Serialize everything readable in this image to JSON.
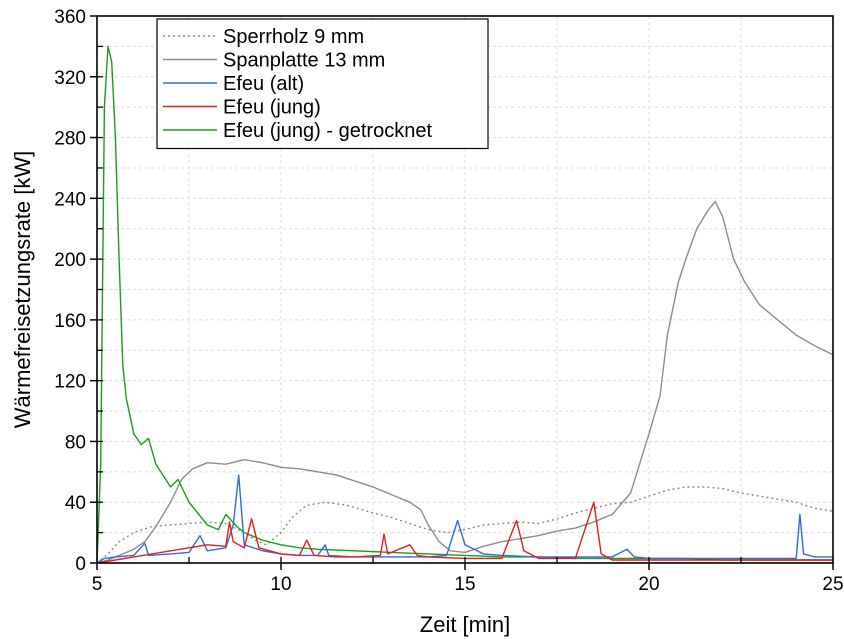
{
  "chart_data": {
    "type": "line",
    "title": "",
    "xlabel": "Zeit [min]",
    "ylabel": "Wärmefreisetzungsrate [kW]",
    "xlim": [
      5,
      25
    ],
    "ylim": [
      0,
      360
    ],
    "xticks": [
      5,
      10,
      15,
      20,
      25
    ],
    "yticks": [
      0,
      40,
      80,
      120,
      160,
      200,
      240,
      280,
      320,
      360
    ],
    "grid": true,
    "legend_position": "top-left",
    "series": [
      {
        "name": "Sperrholz 9 mm",
        "color": "#888888",
        "style": "dotted",
        "points": [
          [
            5,
            0
          ],
          [
            5.3,
            6
          ],
          [
            5.6,
            14
          ],
          [
            6,
            20
          ],
          [
            6.5,
            24
          ],
          [
            7,
            25
          ],
          [
            7.5,
            26
          ],
          [
            8,
            27
          ],
          [
            8.5,
            26
          ],
          [
            9,
            20
          ],
          [
            9.3,
            15
          ],
          [
            9.6,
            12
          ],
          [
            10,
            20
          ],
          [
            10.3,
            30
          ],
          [
            10.7,
            38
          ],
          [
            11.2,
            40
          ],
          [
            11.8,
            38
          ],
          [
            12.5,
            33
          ],
          [
            13,
            30
          ],
          [
            13.5,
            26
          ],
          [
            14,
            22
          ],
          [
            14.5,
            20
          ],
          [
            15,
            22
          ],
          [
            15.5,
            25
          ],
          [
            16,
            26
          ],
          [
            16.5,
            27
          ],
          [
            17,
            26
          ],
          [
            17.5,
            29
          ],
          [
            18,
            33
          ],
          [
            18.5,
            36
          ],
          [
            19,
            39
          ],
          [
            19.5,
            40
          ],
          [
            20,
            44
          ],
          [
            20.5,
            48
          ],
          [
            21,
            50
          ],
          [
            21.5,
            50
          ],
          [
            22,
            49
          ],
          [
            22.5,
            46
          ],
          [
            23,
            44
          ],
          [
            23.5,
            42
          ],
          [
            24,
            40
          ],
          [
            24.5,
            36
          ],
          [
            25,
            34
          ]
        ]
      },
      {
        "name": "Spanplatte 13 mm",
        "color": "#8c8c8c",
        "style": "solid",
        "points": [
          [
            5,
            0
          ],
          [
            5.3,
            2
          ],
          [
            5.6,
            5
          ],
          [
            6,
            9
          ],
          [
            6.3,
            14
          ],
          [
            6.6,
            24
          ],
          [
            7,
            40
          ],
          [
            7.3,
            55
          ],
          [
            7.6,
            62
          ],
          [
            8,
            66
          ],
          [
            8.5,
            65
          ],
          [
            9,
            68
          ],
          [
            9.5,
            66
          ],
          [
            10,
            63
          ],
          [
            10.5,
            62
          ],
          [
            11,
            60
          ],
          [
            11.5,
            58
          ],
          [
            12,
            54
          ],
          [
            12.5,
            50
          ],
          [
            13,
            45
          ],
          [
            13.5,
            40
          ],
          [
            13.8,
            35
          ],
          [
            14,
            25
          ],
          [
            14.3,
            14
          ],
          [
            14.6,
            8
          ],
          [
            15,
            7
          ],
          [
            15.5,
            11
          ],
          [
            16,
            14
          ],
          [
            16.5,
            16
          ],
          [
            17,
            18
          ],
          [
            17.5,
            21
          ],
          [
            18,
            23
          ],
          [
            18.5,
            27
          ],
          [
            19,
            32
          ],
          [
            19.5,
            46
          ],
          [
            20,
            85
          ],
          [
            20.3,
            110
          ],
          [
            20.5,
            150
          ],
          [
            20.8,
            185
          ],
          [
            21,
            200
          ],
          [
            21.3,
            220
          ],
          [
            21.6,
            232
          ],
          [
            21.8,
            238
          ],
          [
            22,
            228
          ],
          [
            22.3,
            200
          ],
          [
            22.6,
            185
          ],
          [
            23,
            170
          ],
          [
            23.5,
            160
          ],
          [
            24,
            150
          ],
          [
            24.5,
            143
          ],
          [
            25,
            137
          ]
        ]
      },
      {
        "name": "Efeu (alt)",
        "color": "#2f6fd0",
        "style": "solid",
        "points": [
          [
            5,
            0
          ],
          [
            5.2,
            3
          ],
          [
            5.5,
            4
          ],
          [
            6,
            5
          ],
          [
            6.3,
            13
          ],
          [
            6.4,
            5
          ],
          [
            7,
            6
          ],
          [
            7.5,
            7
          ],
          [
            7.8,
            18
          ],
          [
            8,
            8
          ],
          [
            8.5,
            10
          ],
          [
            8.7,
            25
          ],
          [
            8.85,
            58
          ],
          [
            9,
            12
          ],
          [
            9.5,
            8
          ],
          [
            10,
            6
          ],
          [
            10.5,
            5
          ],
          [
            11,
            5
          ],
          [
            11.2,
            12
          ],
          [
            11.3,
            5
          ],
          [
            12,
            4
          ],
          [
            13,
            4
          ],
          [
            14,
            4
          ],
          [
            14.5,
            5
          ],
          [
            14.8,
            28
          ],
          [
            15,
            12
          ],
          [
            15.5,
            6
          ],
          [
            16,
            5
          ],
          [
            17,
            4
          ],
          [
            18,
            4
          ],
          [
            19,
            4
          ],
          [
            19.4,
            9
          ],
          [
            19.6,
            4
          ],
          [
            20,
            3
          ],
          [
            21,
            3
          ],
          [
            22,
            3
          ],
          [
            23,
            3
          ],
          [
            24,
            3
          ],
          [
            24.1,
            32
          ],
          [
            24.2,
            6
          ],
          [
            24.5,
            4
          ],
          [
            25,
            4
          ]
        ]
      },
      {
        "name": "Efeu (jung)",
        "color": "#e02020",
        "style": "solid",
        "points": [
          [
            5,
            0
          ],
          [
            5.5,
            2
          ],
          [
            6,
            4
          ],
          [
            6.5,
            6
          ],
          [
            7,
            8
          ],
          [
            7.5,
            10
          ],
          [
            8,
            12
          ],
          [
            8.5,
            11
          ],
          [
            8.6,
            27
          ],
          [
            8.7,
            14
          ],
          [
            9,
            10
          ],
          [
            9.2,
            29
          ],
          [
            9.4,
            10
          ],
          [
            10,
            6
          ],
          [
            10.5,
            5
          ],
          [
            10.7,
            15
          ],
          [
            10.9,
            5
          ],
          [
            11.5,
            4
          ],
          [
            12,
            4
          ],
          [
            12.7,
            5
          ],
          [
            12.8,
            19
          ],
          [
            12.9,
            6
          ],
          [
            13.5,
            12
          ],
          [
            13.7,
            5
          ],
          [
            14,
            4
          ],
          [
            15,
            3
          ],
          [
            16,
            3
          ],
          [
            16.4,
            28
          ],
          [
            16.6,
            8
          ],
          [
            17,
            3
          ],
          [
            18,
            3
          ],
          [
            18.5,
            40
          ],
          [
            18.7,
            6
          ],
          [
            19,
            2
          ],
          [
            20,
            2
          ],
          [
            21,
            2
          ],
          [
            22,
            2
          ],
          [
            23,
            2
          ],
          [
            24,
            2
          ],
          [
            25,
            2
          ]
        ]
      },
      {
        "name": "Efeu (jung) - getrocknet",
        "color": "#1f9a1f",
        "style": "solid",
        "points": [
          [
            5,
            0
          ],
          [
            5.1,
            65
          ],
          [
            5.2,
            300
          ],
          [
            5.3,
            340
          ],
          [
            5.4,
            330
          ],
          [
            5.5,
            280
          ],
          [
            5.6,
            200
          ],
          [
            5.7,
            130
          ],
          [
            5.8,
            108
          ],
          [
            6,
            85
          ],
          [
            6.2,
            78
          ],
          [
            6.4,
            82
          ],
          [
            6.6,
            65
          ],
          [
            7,
            50
          ],
          [
            7.2,
            55
          ],
          [
            7.5,
            40
          ],
          [
            8,
            25
          ],
          [
            8.3,
            22
          ],
          [
            8.5,
            32
          ],
          [
            8.8,
            24
          ],
          [
            9,
            20
          ],
          [
            9.5,
            15
          ],
          [
            10,
            12
          ],
          [
            10.5,
            10
          ],
          [
            11,
            9
          ],
          [
            12,
            8
          ],
          [
            13,
            7
          ],
          [
            14,
            6
          ],
          [
            15,
            5
          ],
          [
            16,
            4
          ],
          [
            17,
            4
          ],
          [
            18,
            3
          ],
          [
            19,
            3
          ],
          [
            20,
            3
          ],
          [
            21,
            3
          ],
          [
            22,
            2
          ],
          [
            23,
            2
          ],
          [
            24,
            2
          ],
          [
            25,
            2
          ]
        ]
      }
    ]
  }
}
